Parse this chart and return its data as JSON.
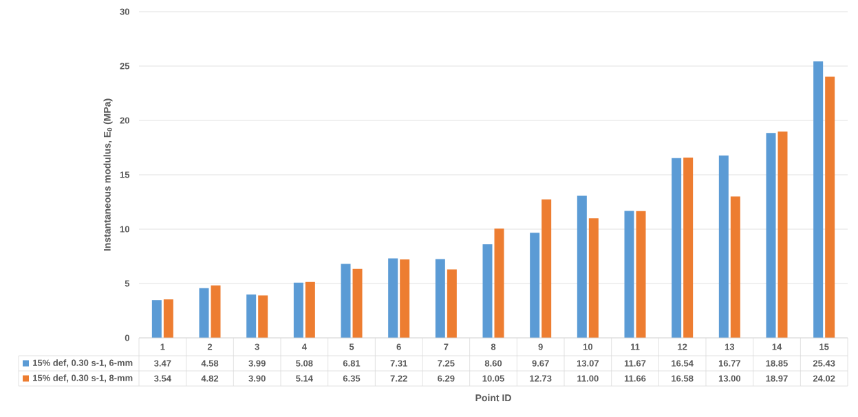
{
  "chart_data": {
    "type": "bar",
    "xlabel": "Point ID",
    "ylabel": "Instantaneous modulus, E$_{0}$ (MPa)",
    "categories": [
      "1",
      "2",
      "3",
      "4",
      "5",
      "6",
      "7",
      "8",
      "9",
      "10",
      "11",
      "12",
      "13",
      "14",
      "15"
    ],
    "series": [
      {
        "name": "15% def, 0.30 s-1, 6-mm",
        "color": "#5b9bd5",
        "values": [
          3.47,
          4.58,
          3.99,
          5.08,
          6.81,
          7.31,
          7.25,
          8.6,
          9.67,
          13.07,
          11.67,
          16.54,
          16.77,
          18.85,
          25.43
        ],
        "value_labels": [
          "3.47",
          "4.58",
          "3.99",
          "5.08",
          "6.81",
          "7.31",
          "7.25",
          "8.60",
          "9.67",
          "13.07",
          "11.67",
          "16.54",
          "16.77",
          "18.85",
          "25.43"
        ]
      },
      {
        "name": "15% def, 0.30 s-1, 8-mm",
        "color": "#ed7d31",
        "values": [
          3.54,
          4.82,
          3.9,
          5.14,
          6.35,
          7.22,
          6.29,
          10.05,
          12.73,
          11.0,
          11.66,
          16.58,
          13.0,
          18.97,
          24.02
        ],
        "value_labels": [
          "3.54",
          "4.82",
          "3.90",
          "5.14",
          "6.35",
          "7.22",
          "6.29",
          "10.05",
          "12.73",
          "11.00",
          "11.66",
          "16.58",
          "13.00",
          "18.97",
          "24.02"
        ]
      }
    ],
    "ylim": [
      0,
      30
    ],
    "yticks": [
      0,
      5,
      10,
      15,
      20,
      25,
      30
    ],
    "grid": "y",
    "legend": "bottom"
  }
}
